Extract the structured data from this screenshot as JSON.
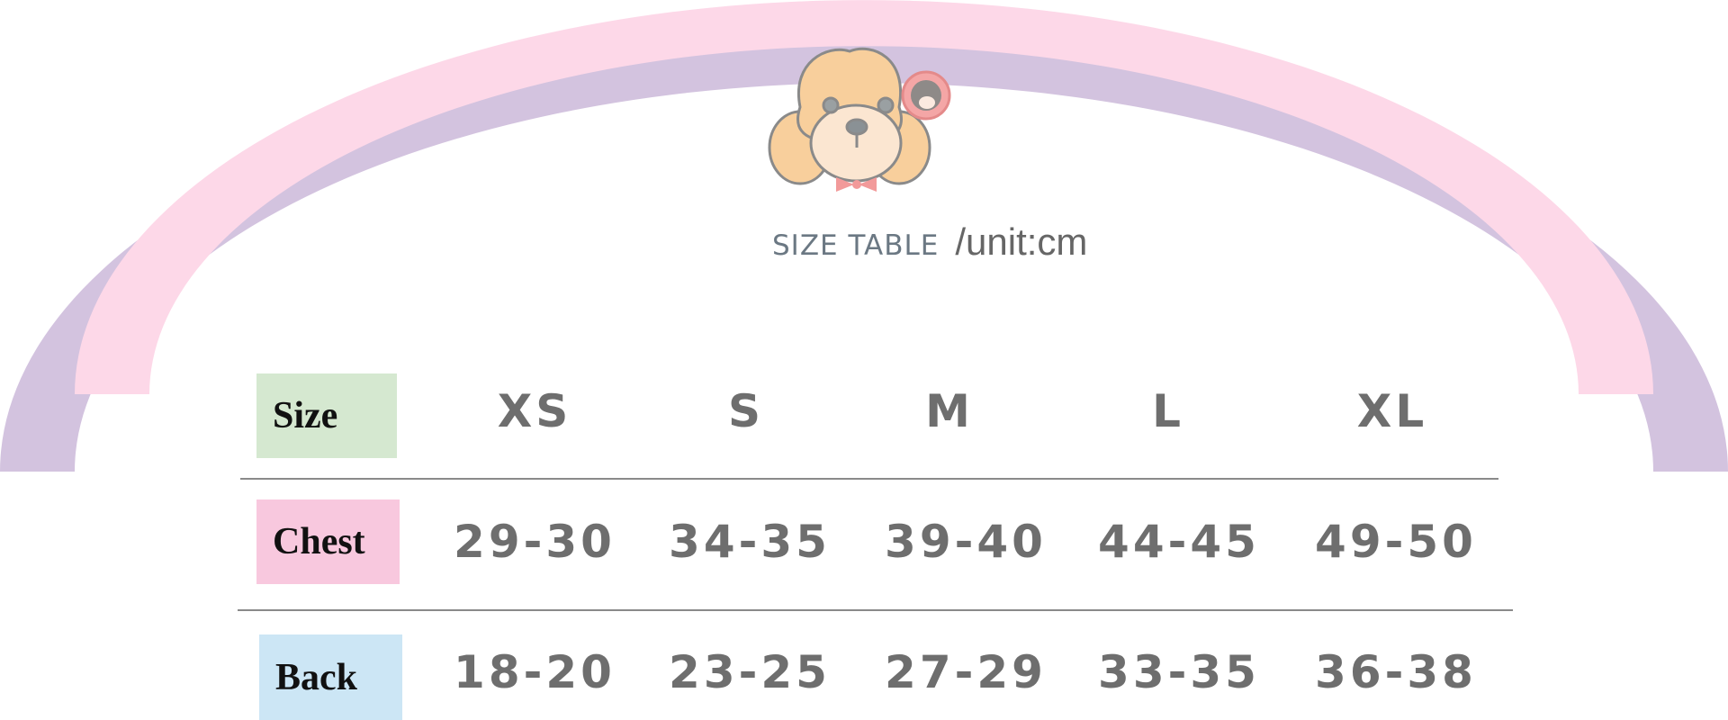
{
  "title": {
    "text": "SIZE TABLE",
    "unit": "/unit:cm"
  },
  "colors": {
    "pink_arc": "#fdd8e8",
    "purple_arc": "#d3c3df",
    "size_label_bg": "#d5e8d0",
    "chest_label_bg": "#f8c8de",
    "back_label_bg": "#cce6f5",
    "value_text": "#6e6e6e"
  },
  "logo": {
    "icon": "poodle-dog-icon"
  },
  "table": {
    "header": {
      "label": "Size",
      "sizes": [
        "XS",
        "S",
        "M",
        "L",
        "XL"
      ]
    },
    "rows": [
      {
        "label": "Chest",
        "values": [
          "29-30",
          "34-35",
          "39-40",
          "44-45",
          "49-50"
        ]
      },
      {
        "label": "Back",
        "values": [
          "18-20",
          "23-25",
          "27-29",
          "33-35",
          "36-38"
        ]
      }
    ]
  }
}
